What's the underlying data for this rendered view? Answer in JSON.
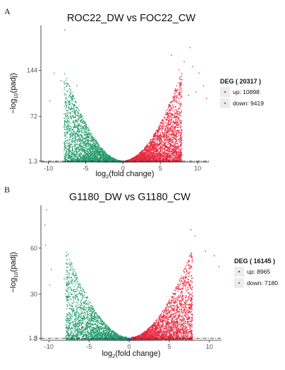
{
  "chart_data": [
    {
      "type": "scatter",
      "panel": "A",
      "title": "ROC22_DW vs FOC22_CW",
      "xlabel": {
        "main": "log",
        "sub": "2",
        "rest": "(fold change)"
      },
      "ylabel": {
        "main": "−log",
        "sub": "10",
        "rest": "(padj)"
      },
      "xlim": [
        -11,
        11.5
      ],
      "ylim": [
        0,
        215
      ],
      "xticks": [
        -10,
        -5,
        0,
        5,
        10
      ],
      "xtick_labels": [
        "-10",
        "-5",
        "0",
        "5",
        "10"
      ],
      "yticks": [
        1.3,
        72,
        144
      ],
      "ytick_labels": [
        "1.3",
        "72",
        "144"
      ],
      "threshold_y": 1.3,
      "grid": false,
      "legend_position": "right",
      "legend": {
        "title": "DEG ( 20317 )",
        "items": [
          {
            "label": "up: 10898",
            "color": "#e8283f"
          },
          {
            "label": "down: 9419",
            "color": "#239c6b"
          }
        ]
      },
      "colors": {
        "up": "#e8283f",
        "down": "#239c6b",
        "nodiff": "#2d5fae"
      },
      "outliers": {
        "up": [
          [
            9,
            180
          ],
          [
            6.5,
            168
          ],
          [
            8.2,
            158
          ],
          [
            9.3,
            150
          ],
          [
            10.2,
            140
          ],
          [
            7.5,
            145
          ],
          [
            10.8,
            120
          ],
          [
            9.8,
            110
          ],
          [
            11.2,
            100
          ],
          [
            8.8,
            105
          ]
        ],
        "down": [
          [
            -7.8,
            208
          ],
          [
            -9.2,
            140
          ],
          [
            -8.3,
            128
          ],
          [
            -6.2,
            120
          ],
          [
            -9.8,
            96
          ],
          [
            -7.4,
            112
          ],
          [
            -6.8,
            98
          ]
        ]
      }
    },
    {
      "type": "scatter",
      "panel": "B",
      "title": "G1180_DW vs G1180_CW",
      "xlabel": {
        "main": "log",
        "sub": "2",
        "rest": "(fold change)"
      },
      "ylabel": {
        "main": "−log",
        "sub": "10",
        "rest": "(padj)"
      },
      "xlim": [
        -11,
        11.5
      ],
      "ylim": [
        0,
        88
      ],
      "xticks": [
        -10,
        -5,
        0,
        5,
        10
      ],
      "xtick_labels": [
        "-10",
        "-5",
        "0",
        "5",
        "10"
      ],
      "yticks": [
        1.3,
        30,
        60
      ],
      "ytick_labels": [
        "1.3",
        "30",
        "60"
      ],
      "extra_yticks": [
        0
      ],
      "extra_ytick_labels": [
        "0"
      ],
      "threshold_y": 1.3,
      "grid": false,
      "legend_position": "right",
      "legend": {
        "title": "DEG ( 16145 )",
        "items": [
          {
            "label": "up: 8965",
            "color": "#e8283f"
          },
          {
            "label": "down: 7180",
            "color": "#239c6b"
          }
        ]
      },
      "colors": {
        "up": "#e8283f",
        "down": "#239c6b",
        "nodiff": "#2d5fae"
      },
      "outliers": {
        "up": [
          [
            8.2,
            68
          ],
          [
            9.5,
            58
          ],
          [
            7.7,
            72
          ],
          [
            10.6,
            55
          ],
          [
            11.2,
            48
          ]
        ],
        "down": [
          [
            -10.3,
            85
          ],
          [
            -10.5,
            75
          ],
          [
            -10.4,
            62
          ],
          [
            -9.7,
            46
          ],
          [
            -8.1,
            40
          ],
          [
            -9.9,
            36
          ]
        ]
      }
    }
  ]
}
